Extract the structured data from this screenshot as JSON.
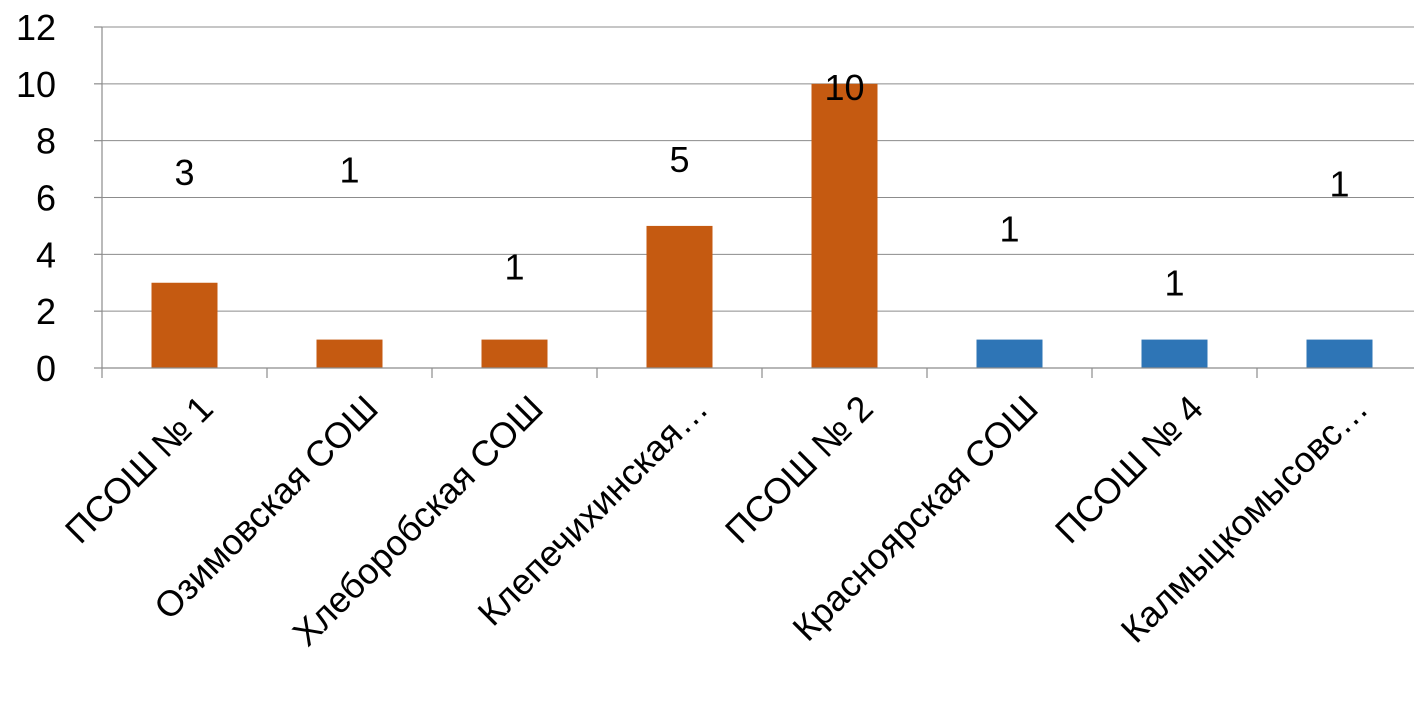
{
  "chart_data": {
    "type": "bar",
    "categories": [
      "ПСОШ № 1",
      "Озимовская СОШ",
      "Хлеборобская СОШ",
      "Клепечихинская…",
      "ПСОШ № 2",
      "Красноярская СОШ",
      "ПСОШ № 4",
      "Калмыцкомысовс…"
    ],
    "values": [
      3,
      1,
      1,
      5,
      10,
      1,
      1,
      1
    ],
    "data_labels": [
      "3",
      "1",
      "1",
      "5",
      "10",
      "1",
      "1",
      "1"
    ],
    "bar_colors": [
      "#c55a11",
      "#c55a11",
      "#c55a11",
      "#c55a11",
      "#c55a11",
      "#2e75b6",
      "#2e75b6",
      "#2e75b6"
    ],
    "ylim": [
      0,
      12
    ],
    "yticks": [
      "0",
      "2",
      "4",
      "6",
      "8",
      "10",
      "12"
    ],
    "grid": true,
    "title": "",
    "xlabel": "",
    "ylabel": ""
  }
}
